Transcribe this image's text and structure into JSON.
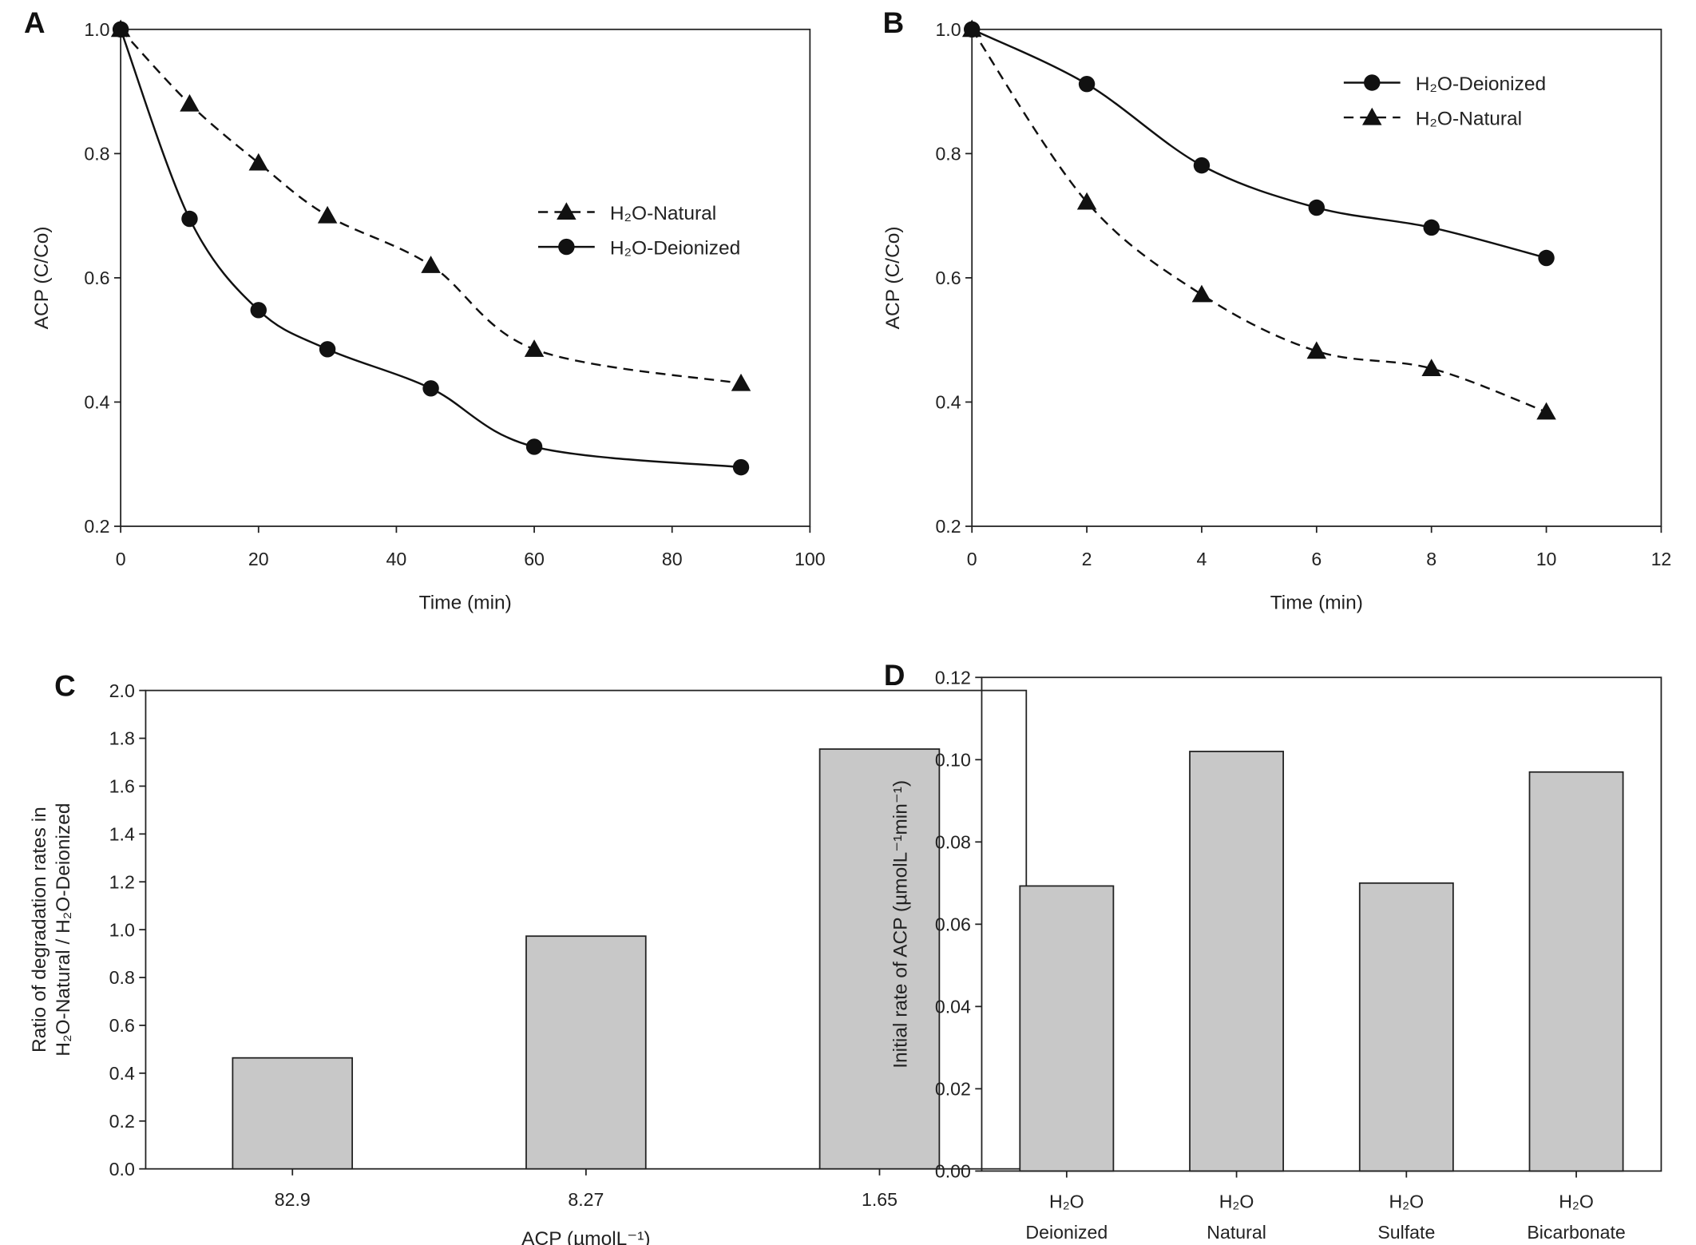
{
  "chart_data": [
    {
      "panel": "A",
      "type": "line",
      "xlabel": "Time (min)",
      "ylabel": "ACP (C/Co)",
      "xlim": [
        0,
        100
      ],
      "ylim": [
        0.2,
        1.0
      ],
      "xticks": [
        "0",
        "20",
        "40",
        "60",
        "80",
        "100"
      ],
      "yticks": [
        "0.2",
        "0.4",
        "0.6",
        "0.8",
        "1.0"
      ],
      "grid": false,
      "legend_position": "center-right",
      "series": [
        {
          "name": "H₂O-Natural",
          "marker": "triangle",
          "line": "dashed",
          "x": [
            0,
            10,
            20,
            30,
            45,
            60,
            90
          ],
          "y": [
            1.0,
            0.88,
            0.785,
            0.7,
            0.62,
            0.485,
            0.43
          ]
        },
        {
          "name": "H₂O-Deionized",
          "marker": "circle",
          "line": "solid",
          "x": [
            0,
            10,
            20,
            30,
            45,
            60,
            90
          ],
          "y": [
            1.0,
            0.695,
            0.548,
            0.485,
            0.422,
            0.328,
            0.295
          ]
        }
      ]
    },
    {
      "panel": "B",
      "type": "line",
      "xlabel": "Time (min)",
      "ylabel": "ACP (C/Co)",
      "xlim": [
        0,
        12
      ],
      "ylim": [
        0.2,
        1.0
      ],
      "xticks": [
        "0",
        "2",
        "4",
        "6",
        "8",
        "10",
        "12"
      ],
      "yticks": [
        "0.2",
        "0.4",
        "0.6",
        "0.8",
        "1.0"
      ],
      "grid": false,
      "legend_position": "top-right",
      "series": [
        {
          "name": "H₂O-Deionized",
          "marker": "circle",
          "line": "solid",
          "x": [
            0,
            2,
            4,
            6,
            8,
            10
          ],
          "y": [
            1.0,
            0.912,
            0.781,
            0.713,
            0.681,
            0.632
          ]
        },
        {
          "name": "H₂O-Natural",
          "marker": "triangle",
          "line": "dashed",
          "x": [
            0,
            2,
            4,
            6,
            8,
            10
          ],
          "y": [
            1.0,
            0.722,
            0.573,
            0.482,
            0.454,
            0.384
          ]
        }
      ]
    },
    {
      "panel": "C",
      "type": "bar",
      "xlabel": "ACP (µmolL⁻¹)",
      "ylabel": [
        "Ratio of degradation rates in",
        "H₂O-Natural / H₂O-Deionized"
      ],
      "ylim": [
        0,
        2.0
      ],
      "yticks": [
        "0.0",
        "0.2",
        "0.4",
        "0.6",
        "0.8",
        "1.0",
        "1.2",
        "1.4",
        "1.6",
        "1.8",
        "2.0"
      ],
      "categories": [
        [
          "82.9"
        ],
        [
          "8.27"
        ],
        [
          "1.65"
        ]
      ],
      "values": [
        0.464,
        0.973,
        1.755
      ],
      "bar_color": "#c8c8c8",
      "grid": false
    },
    {
      "panel": "D",
      "type": "bar",
      "xlabel": "",
      "ylabel": "Initial rate of ACP (µmolL⁻¹min⁻¹)",
      "ylim": [
        0,
        0.12
      ],
      "yticks": [
        "0.00",
        "0.02",
        "0.04",
        "0.06",
        "0.08",
        "0.10",
        "0.12"
      ],
      "categories": [
        [
          "H₂O",
          "Deionized"
        ],
        [
          "H₂O",
          "Natural"
        ],
        [
          "H₂O",
          "Sulfate"
        ],
        [
          "H₂O",
          "Bicarbonate"
        ]
      ],
      "values": [
        0.0693,
        0.102,
        0.07,
        0.097
      ],
      "bar_color": "#c8c8c8",
      "grid": false
    }
  ]
}
